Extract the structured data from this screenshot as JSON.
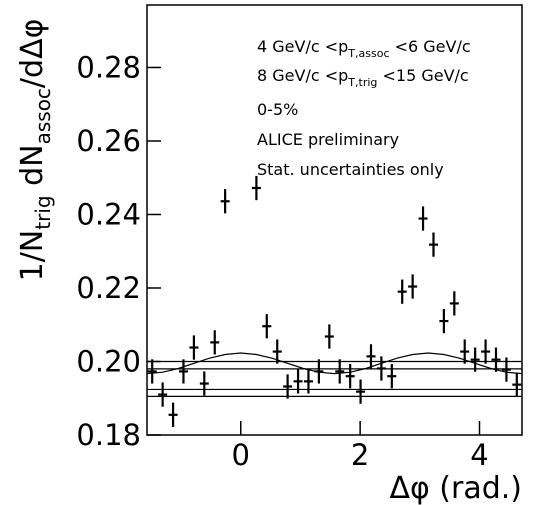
{
  "chart_data": {
    "type": "errorbar",
    "x_label": "Δφ (rad.)",
    "y_label": [
      "1/N",
      "trig",
      " dN",
      "assoc",
      "/dΔφ"
    ],
    "annotations": [
      [
        "4 GeV/c <p",
        "T,assoc",
        " <6 GeV/c"
      ],
      [
        "8 GeV/c <p",
        "T,trig",
        " <15 GeV/c"
      ],
      [
        "0-5%"
      ],
      [
        "ALICE preliminary"
      ],
      [
        "Stat. uncertainties only"
      ]
    ],
    "xlim": [
      -1.571,
      4.712
    ],
    "ylim": [
      0.18,
      0.297
    ],
    "xticks": [
      0,
      2,
      4
    ],
    "yticks": [
      0.18,
      {
        "value": 0.2,
        "label": "0.20"
      },
      0.22,
      0.24,
      0.26,
      0.28
    ],
    "color": "#000000",
    "x": [
      -1.484,
      -1.309,
      -1.134,
      -0.96,
      -0.785,
      -0.611,
      -0.436,
      -0.262,
      -0.087,
      0.087,
      0.262,
      0.436,
      0.611,
      0.785,
      0.96,
      1.134,
      1.309,
      1.484,
      1.658,
      1.833,
      2.007,
      2.182,
      2.356,
      2.531,
      2.705,
      2.88,
      3.054,
      3.229,
      3.403,
      3.578,
      3.752,
      3.927,
      4.102,
      4.276,
      4.451,
      4.625
    ],
    "values": [
      0.1973,
      0.191,
      0.1855,
      0.1973,
      0.2038,
      0.194,
      0.2052,
      0.2436,
      null,
      null,
      0.2472,
      0.2096,
      0.2027,
      0.1932,
      0.1946,
      0.1946,
      0.1973,
      0.2068,
      0.1973,
      0.196,
      0.1918,
      0.2014,
      0.1981,
      0.196,
      0.219,
      0.2204,
      0.2389,
      0.2318,
      0.211,
      0.2158,
      0.2027,
      0.2005,
      0.2027,
      0.2005,
      0.1978,
      0.1937
    ],
    "errors": [
      0.0033,
      0.0033,
      0.0033,
      0.0033,
      0.0033,
      0.0033,
      0.0033,
      0.0033,
      null,
      null,
      0.0033,
      0.0033,
      0.0033,
      0.0033,
      0.0033,
      0.0033,
      0.0033,
      0.0033,
      0.0033,
      0.0033,
      0.0033,
      0.0033,
      0.0033,
      0.0033,
      0.0033,
      0.0033,
      0.0033,
      0.0033,
      0.0033,
      0.0033,
      0.0033,
      0.0033,
      0.0033,
      0.0033,
      0.0033,
      0.0033
    ],
    "reference_lines": [
      0.2,
      0.198,
      0.1924,
      0.1905
    ],
    "curve": {
      "x": [
        -1.571,
        -1.309,
        -1.047,
        -0.785,
        -0.524,
        -0.262,
        0,
        0.262,
        0.524,
        0.785,
        1.047,
        1.309,
        1.571,
        1.833,
        2.094,
        2.356,
        2.618,
        2.88,
        3.142,
        3.403,
        3.665,
        3.927,
        4.189,
        4.451,
        4.712
      ],
      "values": [
        0.1967,
        0.1971,
        0.1981,
        0.1995,
        0.2009,
        0.2019,
        0.2023,
        0.2019,
        0.2009,
        0.1995,
        0.1981,
        0.1971,
        0.1967,
        0.1971,
        0.1981,
        0.1995,
        0.2009,
        0.2019,
        0.2023,
        0.2019,
        0.2009,
        0.1995,
        0.1981,
        0.1971,
        0.1967
      ]
    }
  }
}
